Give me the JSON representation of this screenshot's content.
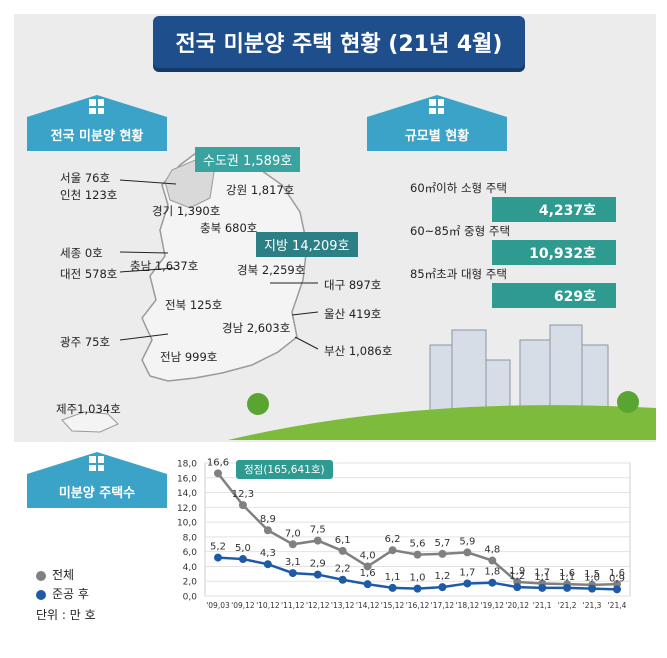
{
  "title": "전국 미분양 주택 현황 (21년 4월)",
  "sections": {
    "national": "전국 미분양 현황",
    "by_size": "규모별 현황",
    "count": "미분양 주택수"
  },
  "regions": {
    "capital": "수도권 1,589호",
    "local": "지방 14,209호",
    "seoul": "서울 76호",
    "incheon": "인천 123호",
    "gyeonggi": "경기 1,390호",
    "gangwon": "강원 1,817호",
    "chungbuk": "충북 680호",
    "sejong": "세종 0호",
    "chungnam": "충남 1,637호",
    "daejeon": "대전 578호",
    "gyeongbuk": "경북 2,259호",
    "daegu": "대구 897호",
    "jeonbuk": "전북 125호",
    "ulsan": "울산 419호",
    "gyeongnam": "경남 2,603호",
    "gwangju": "광주 75호",
    "busan": "부산 1,086호",
    "jeonnam": "전남 999호",
    "jeju": "제주1,034호"
  },
  "sizes": [
    {
      "label": "60㎡이하 소형 주택",
      "value": "4,237호"
    },
    {
      "label": "60~85㎡ 중형 주택",
      "value": "10,932호"
    },
    {
      "label": "85㎡초과 대형 주택",
      "value": "629호"
    }
  ],
  "legend": {
    "total": "전체",
    "completed": "준공 후",
    "unit": "단위 : 만 호"
  },
  "peak_label": "정점(165,641호)",
  "colors": {
    "navy": "#1f4e8c",
    "teal": "#2f9a90",
    "sky": "#3aa3c7",
    "total_series": "#808080",
    "completed_series": "#1f5aa6"
  },
  "chart_data": {
    "type": "line",
    "x": [
      "'09,03",
      "'09,12",
      "'10,12",
      "'11,12",
      "'12,12",
      "'13,12",
      "'14,12",
      "'15,12",
      "'16,12",
      "'17,12",
      "'18,12",
      "'19,12",
      "'20,12",
      "'21,1",
      "'21,2",
      "'21,3",
      "'21,4"
    ],
    "series": [
      {
        "name": "전체",
        "values": [
          16.6,
          12.3,
          8.9,
          7.0,
          7.5,
          6.1,
          4.0,
          6.2,
          5.6,
          5.7,
          5.9,
          4.8,
          1.9,
          1.7,
          1.6,
          1.5,
          1.6
        ],
        "labels": [
          "16,6",
          "12,3",
          "8,9",
          "7,0",
          "7,5",
          "6,1",
          "4,0",
          "6,2",
          "5,6",
          "5,7",
          "5,9",
          "4,8",
          "1,9",
          "1,7",
          "1,6",
          "1,5",
          "1,6"
        ]
      },
      {
        "name": "준공 후",
        "values": [
          5.2,
          5.0,
          4.3,
          3.1,
          2.9,
          2.2,
          1.6,
          1.1,
          1.0,
          1.2,
          1.7,
          1.8,
          1.2,
          1.1,
          1.1,
          1.0,
          0.9
        ],
        "labels": [
          "5,2",
          "5,0",
          "4,3",
          "3,1",
          "2,9",
          "2,2",
          "1,6",
          "1,1",
          "1,0",
          "1,2",
          "1,7",
          "1,8",
          "1,2",
          "1,1",
          "1,1",
          "1,0",
          "0,9"
        ]
      }
    ],
    "yticks": [
      "0,0",
      "2,0",
      "4,0",
      "6,0",
      "8,0",
      "10,0",
      "12,0",
      "14,0",
      "16,0",
      "18,0"
    ],
    "ylim": [
      0,
      18
    ],
    "grid": true,
    "legend": "bottom-left"
  }
}
